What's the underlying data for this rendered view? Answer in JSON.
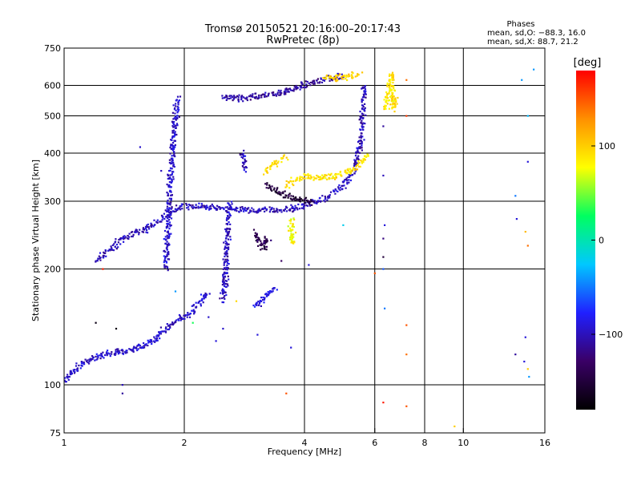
{
  "chart_data": {
    "type": "scatter",
    "title": "Tromsø 20150521 20:16:00–20:17:43",
    "subtitle": "RwPretec (8p)",
    "xlabel": "Frequency [MHz]",
    "ylabel": "Stationary phase Virtual Height [km]",
    "x_scale": "log",
    "y_scale": "log",
    "xlim": [
      1,
      16
    ],
    "ylim": [
      75,
      750
    ],
    "x_ticks": [
      1,
      2,
      4,
      6,
      8,
      10,
      16
    ],
    "x_ticklabels": [
      "1",
      "2",
      "4",
      "6",
      "8",
      "10",
      "16"
    ],
    "y_ticks": [
      75,
      100,
      200,
      300,
      400,
      500,
      600,
      750
    ],
    "y_ticklabels": [
      "75",
      "100",
      "200",
      "300",
      "400",
      "500",
      "600",
      "750"
    ],
    "grid": true,
    "phase_info": {
      "title": "Phases",
      "line_o": "mean, sd,O: −88.3, 16.0",
      "line_x": "mean, sd,X:  88.7, 21.2"
    },
    "colorbar": {
      "label": "[deg]",
      "range": [
        -180,
        180
      ],
      "ticks": [
        -100,
        0,
        100
      ],
      "ticklabels": [
        "−100",
        "0",
        "100"
      ],
      "colormap": [
        "#000000",
        "#3a0066",
        "#2020ff",
        "#00c8ff",
        "#00ff60",
        "#ffff00",
        "#ff9000",
        "#ff0000"
      ]
    },
    "traces": [
      {
        "phase": -95,
        "points": [
          [
            1.0,
            102
          ],
          [
            1.05,
            108
          ],
          [
            1.1,
            113
          ],
          [
            1.15,
            116
          ],
          [
            1.2,
            118
          ],
          [
            1.3,
            121
          ],
          [
            1.4,
            122
          ],
          [
            1.5,
            124
          ],
          [
            1.6,
            127
          ],
          [
            1.7,
            133
          ],
          [
            1.8,
            140
          ],
          [
            1.9,
            146
          ],
          [
            2.0,
            150
          ],
          [
            2.1,
            155
          ],
          [
            2.2,
            165
          ],
          [
            2.3,
            175
          ]
        ]
      },
      {
        "phase": -100,
        "points": [
          [
            1.2,
            210
          ],
          [
            1.3,
            225
          ],
          [
            1.4,
            240
          ],
          [
            1.5,
            247
          ],
          [
            1.6,
            255
          ],
          [
            1.7,
            265
          ],
          [
            1.8,
            275
          ],
          [
            1.9,
            285
          ],
          [
            2.0,
            292
          ],
          [
            2.2,
            290
          ],
          [
            2.5,
            287
          ],
          [
            3.0,
            284
          ],
          [
            3.5,
            285
          ],
          [
            4.0,
            292
          ],
          [
            4.5,
            305
          ],
          [
            5.0,
            330
          ],
          [
            5.3,
            360
          ],
          [
            5.5,
            420
          ],
          [
            5.6,
            500
          ],
          [
            5.65,
            600
          ]
        ]
      },
      {
        "phase": -95,
        "points": [
          [
            1.8,
            200
          ],
          [
            1.82,
            260
          ],
          [
            1.84,
            320
          ],
          [
            1.86,
            380
          ],
          [
            1.88,
            430
          ],
          [
            1.9,
            480
          ],
          [
            1.92,
            540
          ],
          [
            1.94,
            560
          ]
        ]
      },
      {
        "phase": -100,
        "points": [
          [
            2.5,
            165
          ],
          [
            2.52,
            180
          ],
          [
            2.54,
            200
          ],
          [
            2.56,
            230
          ],
          [
            2.58,
            270
          ],
          [
            2.6,
            300
          ]
        ]
      },
      {
        "phase": -110,
        "points": [
          [
            2.5,
            560
          ],
          [
            2.7,
            555
          ],
          [
            2.9,
            560
          ],
          [
            3.2,
            565
          ],
          [
            3.5,
            575
          ],
          [
            3.8,
            590
          ],
          [
            4.2,
            610
          ],
          [
            4.6,
            625
          ],
          [
            5.0,
            635
          ]
        ]
      },
      {
        "phase": -140,
        "points": [
          [
            3.0,
            250
          ],
          [
            3.05,
            240
          ],
          [
            3.1,
            230
          ],
          [
            3.15,
            225
          ],
          [
            3.2,
            240
          ],
          [
            3.25,
            235
          ]
        ]
      },
      {
        "phase": -150,
        "points": [
          [
            3.2,
            330
          ],
          [
            3.4,
            320
          ],
          [
            3.6,
            310
          ],
          [
            3.8,
            305
          ],
          [
            4.0,
            300
          ],
          [
            4.2,
            298
          ]
        ]
      },
      {
        "phase": 90,
        "points": [
          [
            3.6,
            330
          ],
          [
            3.8,
            340
          ],
          [
            4.0,
            350
          ],
          [
            4.4,
            345
          ],
          [
            4.8,
            350
          ],
          [
            5.2,
            360
          ],
          [
            5.5,
            375
          ],
          [
            5.8,
            400
          ]
        ]
      },
      {
        "phase": 90,
        "points": [
          [
            6.4,
            520
          ],
          [
            6.45,
            560
          ],
          [
            6.5,
            600
          ],
          [
            6.6,
            640
          ],
          [
            6.7,
            520
          ],
          [
            6.8,
            560
          ]
        ]
      },
      {
        "phase": 80,
        "points": [
          [
            3.7,
            270
          ],
          [
            3.72,
            250
          ],
          [
            3.75,
            230
          ]
        ]
      },
      {
        "phase": 95,
        "points": [
          [
            3.2,
            360
          ],
          [
            3.4,
            380
          ],
          [
            3.6,
            395
          ]
        ]
      },
      {
        "phase": 100,
        "points": [
          [
            4.5,
            625
          ],
          [
            5.0,
            630
          ],
          [
            5.5,
            640
          ]
        ]
      },
      {
        "phase": -100,
        "points": [
          [
            2.8,
            400
          ],
          [
            2.82,
            380
          ],
          [
            2.85,
            360
          ]
        ]
      },
      {
        "phase": -90,
        "points": [
          [
            3.0,
            160
          ],
          [
            3.2,
            170
          ],
          [
            3.4,
            180
          ]
        ]
      }
    ],
    "scattered_points": [
      [
        2.3,
        150,
        -95
      ],
      [
        2.5,
        140,
        -95
      ],
      [
        1.4,
        100,
        -100
      ],
      [
        1.4,
        95,
        -110
      ],
      [
        9.5,
        78,
        100
      ],
      [
        14,
        620,
        -40
      ],
      [
        15,
        660,
        -40
      ],
      [
        14.5,
        500,
        -30
      ],
      [
        14.5,
        380,
        -90
      ],
      [
        14.3,
        133,
        -90
      ],
      [
        14.2,
        115,
        -90
      ],
      [
        13.5,
        120,
        -110
      ],
      [
        14.5,
        110,
        100
      ],
      [
        14.6,
        105,
        -40
      ],
      [
        14.5,
        230,
        140
      ],
      [
        13.6,
        270,
        -90
      ],
      [
        14.3,
        250,
        110
      ],
      [
        13.5,
        310,
        -50
      ],
      [
        7.2,
        620,
        140
      ],
      [
        7.2,
        500,
        160
      ],
      [
        7.2,
        120,
        140
      ],
      [
        7.2,
        88,
        150
      ],
      [
        6.3,
        90,
        170
      ],
      [
        6.3,
        240,
        -120
      ],
      [
        6.35,
        260,
        -90
      ],
      [
        6.3,
        215,
        -150
      ],
      [
        6.3,
        200,
        -60
      ],
      [
        6.35,
        158,
        -50
      ],
      [
        7.2,
        143,
        150
      ],
      [
        6.3,
        470,
        -110
      ],
      [
        6.3,
        350,
        -100
      ],
      [
        1.55,
        415,
        -95
      ],
      [
        1.75,
        360,
        -100
      ],
      [
        1.25,
        200,
        170
      ],
      [
        1.9,
        175,
        -40
      ],
      [
        3.05,
        135,
        -90
      ],
      [
        3.6,
        95,
        150
      ],
      [
        5.0,
        260,
        -20
      ],
      [
        2.7,
        165,
        95
      ],
      [
        3.5,
        210,
        -130
      ],
      [
        4.1,
        205,
        -90
      ],
      [
        3.7,
        125,
        -90
      ],
      [
        2.4,
        130,
        -90
      ],
      [
        6.0,
        195,
        150
      ],
      [
        1.2,
        145,
        -170
      ],
      [
        1.35,
        140,
        -170
      ],
      [
        2.1,
        145,
        30
      ]
    ]
  }
}
